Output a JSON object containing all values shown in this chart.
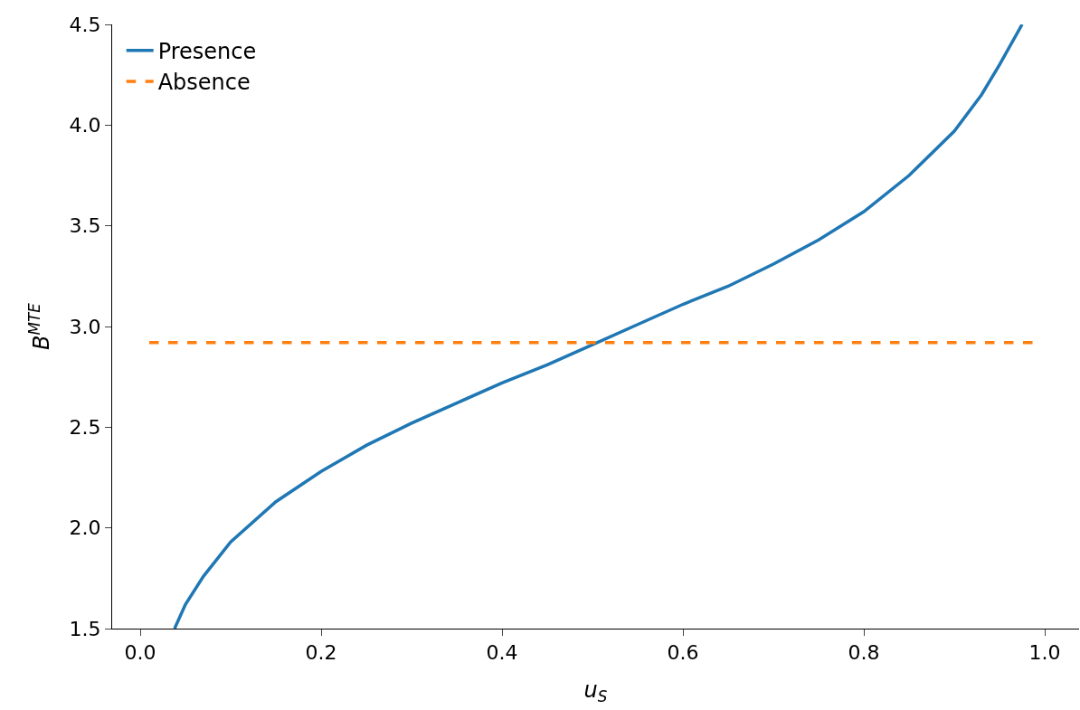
{
  "chart_data": {
    "type": "line",
    "xlabel": "u$_{S}$",
    "ylabel": "B$^{MTE}$",
    "xlim": [
      -0.031,
      1.038
    ],
    "xticks": [
      {
        "value": 0,
        "label": "0.0"
      },
      0.2,
      0.4,
      0.6,
      0.8,
      {
        "value": 1,
        "label": "1.0"
      }
    ],
    "ylim": [
      1.5,
      4.5
    ],
    "yticks": [
      1.5,
      {
        "value": 2,
        "label": "2.0"
      },
      2.5,
      {
        "value": 3,
        "label": "3.0"
      },
      3.5,
      {
        "value": 4,
        "label": "4.0"
      },
      4.5
    ],
    "grid": false,
    "legend": "top left",
    "marker": "none",
    "series": [
      {
        "name": "Presence",
        "color": "#1f77b4",
        "line_style": "solid",
        "x": [
          0.038,
          0.05,
          0.07,
          0.1,
          0.15,
          0.2,
          0.25,
          0.3,
          0.35,
          0.4,
          0.45,
          0.5,
          0.55,
          0.6,
          0.65,
          0.7,
          0.75,
          0.8,
          0.85,
          0.9,
          0.93,
          0.95,
          0.975
        ],
        "values": [
          1.5,
          1.62,
          1.76,
          1.93,
          2.13,
          2.28,
          2.41,
          2.52,
          2.62,
          2.72,
          2.81,
          2.91,
          3.01,
          3.11,
          3.2,
          3.31,
          3.43,
          3.57,
          3.75,
          3.97,
          4.15,
          4.3,
          4.5
        ]
      },
      {
        "name": "Absence",
        "color": "#ff7f0e",
        "line_style": "dashed",
        "x": [
          0.01,
          0.99
        ],
        "values": [
          2.92,
          2.92
        ]
      }
    ]
  }
}
